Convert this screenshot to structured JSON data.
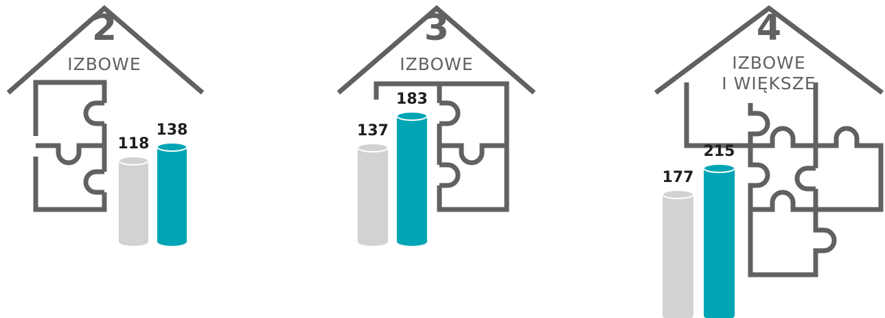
{
  "chart_data": [
    {
      "type": "cylinder",
      "title": "2",
      "subtitle": [
        "IZBOWE"
      ],
      "values": [
        118,
        138
      ],
      "colors": [
        "#d1d2d4",
        "#00a5b5"
      ]
    },
    {
      "type": "cylinder",
      "title": "3",
      "subtitle": [
        "IZBOWE"
      ],
      "values": [
        137,
        183
      ],
      "colors": [
        "#d1d2d4",
        "#00a5b5"
      ]
    },
    {
      "type": "cylinder",
      "title": "4",
      "subtitle": [
        "IZBOWE",
        "I WIĘKSZE"
      ],
      "values": [
        177,
        215
      ],
      "colors": [
        "#d1d2d4",
        "#00a5b5"
      ]
    }
  ]
}
